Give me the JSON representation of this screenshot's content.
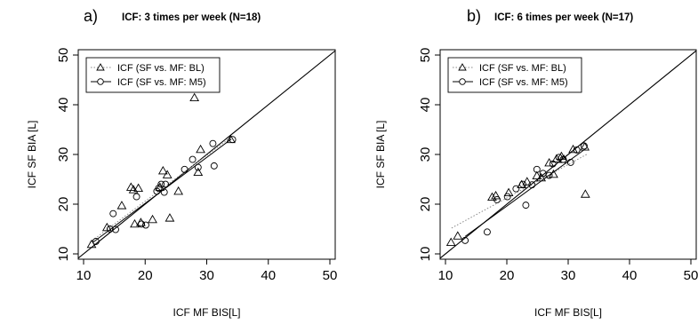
{
  "chart_data": [
    {
      "type": "scatter",
      "panel_label": "a)",
      "title": "ICF: 3 times per week (N=18)",
      "xlabel": "ICF MF BIS[L]",
      "ylabel": "ICF SF BIA [L]",
      "xlim": [
        10,
        50
      ],
      "ylim": [
        10,
        50
      ],
      "x_ticks": [
        "10",
        "20",
        "30",
        "40",
        "50"
      ],
      "y_ticks": [
        "10",
        "20",
        "30",
        "40",
        "50"
      ],
      "identity_line": true,
      "grid": false,
      "legend_position": "top-left",
      "series": [
        {
          "name": "ICF (SF vs. MF: BL)",
          "marker": "triangle",
          "line": "dotted",
          "fit": {
            "x0": 11,
            "y0": 12.3,
            "x1": 34,
            "y1": 33.5
          },
          "points": [
            {
              "x": 11.3,
              "y": 11.9
            },
            {
              "x": 13.8,
              "y": 15.3
            },
            {
              "x": 16.2,
              "y": 19.7
            },
            {
              "x": 17.7,
              "y": 23.4
            },
            {
              "x": 18.1,
              "y": 22.9
            },
            {
              "x": 18.9,
              "y": 23.2
            },
            {
              "x": 19.3,
              "y": 16.3
            },
            {
              "x": 18.3,
              "y": 16.0
            },
            {
              "x": 21.2,
              "y": 16.9
            },
            {
              "x": 22.4,
              "y": 23.4
            },
            {
              "x": 22.9,
              "y": 26.7
            },
            {
              "x": 23.6,
              "y": 25.9
            },
            {
              "x": 24.0,
              "y": 17.2
            },
            {
              "x": 25.4,
              "y": 22.6
            },
            {
              "x": 28.0,
              "y": 41.4
            },
            {
              "x": 28.6,
              "y": 26.4
            },
            {
              "x": 29.0,
              "y": 31.0
            },
            {
              "x": 33.9,
              "y": 33.0
            }
          ]
        },
        {
          "name": "ICF (SF vs. MF: M5)",
          "marker": "circle",
          "line": "solid",
          "fit": {
            "x0": 11.5,
            "y0": 12.3,
            "x1": 34,
            "y1": 33.1
          },
          "points": [
            {
              "x": 12.0,
              "y": 12.5
            },
            {
              "x": 14.3,
              "y": 15.0
            },
            {
              "x": 15.2,
              "y": 14.9
            },
            {
              "x": 14.8,
              "y": 18.1
            },
            {
              "x": 18.6,
              "y": 21.5
            },
            {
              "x": 19.4,
              "y": 16.0
            },
            {
              "x": 20.1,
              "y": 15.8
            },
            {
              "x": 21.9,
              "y": 22.6
            },
            {
              "x": 22.2,
              "y": 23.2
            },
            {
              "x": 23.1,
              "y": 22.4
            },
            {
              "x": 23.3,
              "y": 24.0
            },
            {
              "x": 22.6,
              "y": 24.0
            },
            {
              "x": 26.4,
              "y": 27.0
            },
            {
              "x": 27.7,
              "y": 29.0
            },
            {
              "x": 28.6,
              "y": 27.4
            },
            {
              "x": 31.0,
              "y": 32.2
            },
            {
              "x": 31.2,
              "y": 27.7
            },
            {
              "x": 34.2,
              "y": 33.0
            }
          ]
        }
      ]
    },
    {
      "type": "scatter",
      "panel_label": "b)",
      "title": "ICF: 6 times per week (N=17)",
      "xlabel": "ICF MF BIS[L]",
      "ylabel": "ICF SF BIA [L]",
      "xlim": [
        10,
        50
      ],
      "ylim": [
        10,
        50
      ],
      "x_ticks": [
        "10",
        "20",
        "30",
        "40",
        "50"
      ],
      "y_ticks": [
        "10",
        "20",
        "30",
        "40",
        "50"
      ],
      "identity_line": true,
      "grid": false,
      "legend_position": "top-left",
      "series": [
        {
          "name": "ICF (SF vs. MF: BL)",
          "marker": "triangle",
          "line": "dotted",
          "fit": {
            "x0": 11,
            "y0": 15.2,
            "x1": 33,
            "y1": 30.0
          },
          "points": [
            {
              "x": 10.9,
              "y": 12.3
            },
            {
              "x": 12.0,
              "y": 13.6
            },
            {
              "x": 17.6,
              "y": 21.4
            },
            {
              "x": 18.2,
              "y": 21.7
            },
            {
              "x": 20.3,
              "y": 22.3
            },
            {
              "x": 22.4,
              "y": 23.9
            },
            {
              "x": 23.3,
              "y": 24.5
            },
            {
              "x": 24.9,
              "y": 25.7
            },
            {
              "x": 25.6,
              "y": 25.3
            },
            {
              "x": 26.9,
              "y": 28.3
            },
            {
              "x": 27.6,
              "y": 26.0
            },
            {
              "x": 28.1,
              "y": 29.1
            },
            {
              "x": 28.9,
              "y": 29.6
            },
            {
              "x": 29.3,
              "y": 29.0
            },
            {
              "x": 30.8,
              "y": 31.0
            },
            {
              "x": 32.7,
              "y": 31.5
            },
            {
              "x": 32.8,
              "y": 22.0
            }
          ]
        },
        {
          "name": "ICF (SF vs. MF: M5)",
          "marker": "circle",
          "line": "solid",
          "fit": {
            "x0": 13.2,
            "y0": 13.5,
            "x1": 33,
            "y1": 31.3
          },
          "points": [
            {
              "x": 13.2,
              "y": 12.7
            },
            {
              "x": 16.8,
              "y": 14.4
            },
            {
              "x": 18.4,
              "y": 20.9
            },
            {
              "x": 20.1,
              "y": 21.5
            },
            {
              "x": 21.5,
              "y": 23.1
            },
            {
              "x": 22.6,
              "y": 24.0
            },
            {
              "x": 23.1,
              "y": 19.8
            },
            {
              "x": 24.1,
              "y": 23.9
            },
            {
              "x": 24.9,
              "y": 27.0
            },
            {
              "x": 25.9,
              "y": 26.2
            },
            {
              "x": 26.9,
              "y": 25.8
            },
            {
              "x": 27.5,
              "y": 28.1
            },
            {
              "x": 28.5,
              "y": 29.4
            },
            {
              "x": 29.2,
              "y": 29.0
            },
            {
              "x": 30.4,
              "y": 28.4
            },
            {
              "x": 31.4,
              "y": 30.9
            },
            {
              "x": 32.6,
              "y": 31.7
            }
          ]
        }
      ]
    }
  ]
}
